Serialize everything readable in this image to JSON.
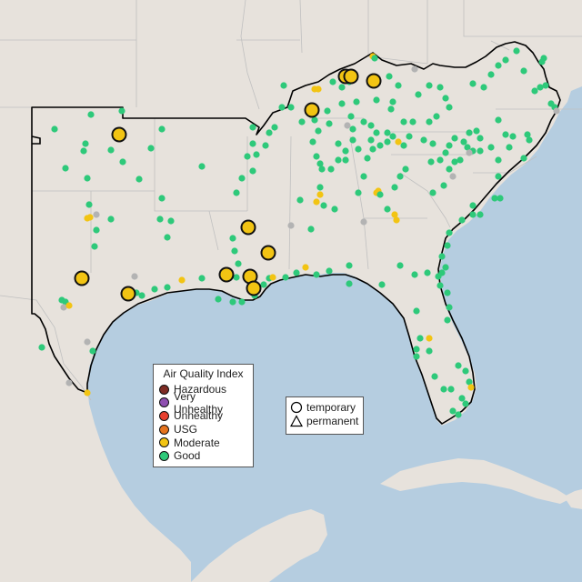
{
  "legend": {
    "title": "Air Quality Index",
    "categories": [
      {
        "label": "Hazardous",
        "color": "#7e2c24"
      },
      {
        "label": "Very Unhealthy",
        "color": "#8e4fb0"
      },
      {
        "label": "Unhealthy",
        "color": "#e8402f"
      },
      {
        "label": "USG",
        "color": "#e5731e"
      },
      {
        "label": "Moderate",
        "color": "#f2c413"
      },
      {
        "label": "Good",
        "color": "#2ec97a"
      }
    ]
  },
  "site_type_legend": {
    "temporary": "temporary",
    "permanent": "permanent"
  },
  "colors": {
    "ocean": "#b5cde0",
    "land": "#e7e2dc",
    "no_data": "#b3b3b3",
    "border": "#000000"
  }
}
